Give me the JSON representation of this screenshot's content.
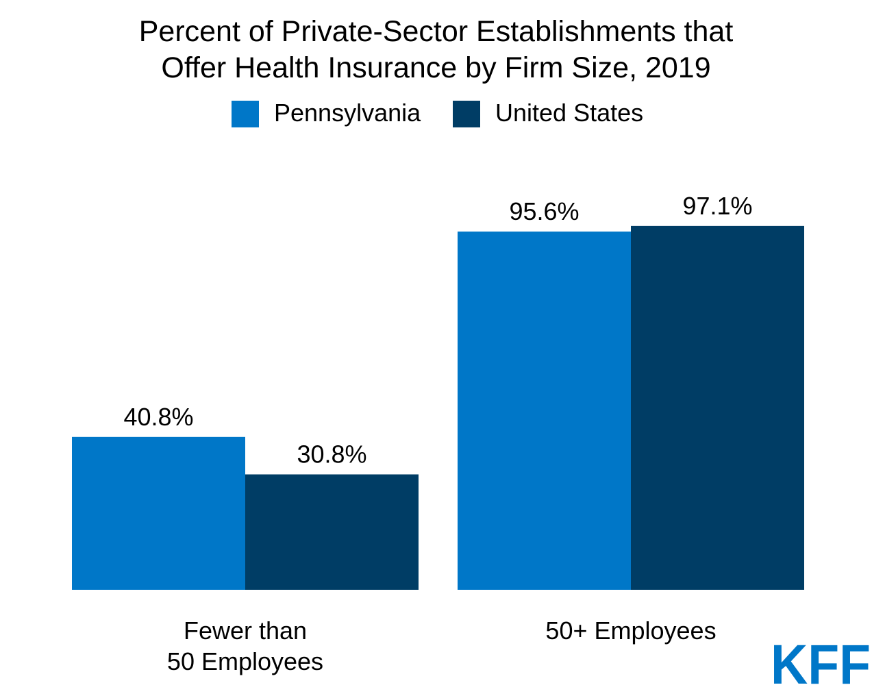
{
  "chart_data": {
    "type": "bar",
    "title_lines": [
      "Percent of Private-Sector Establishments that",
      "Offer Health Insurance by Firm Size, 2019"
    ],
    "categories": [
      [
        "Fewer than",
        "50 Employees"
      ],
      [
        "50+ Employees"
      ]
    ],
    "series": [
      {
        "name": "Pennsylvania",
        "color": "#0077c8",
        "values": [
          40.8,
          95.6
        ],
        "labels": [
          "40.8%",
          "95.6%"
        ]
      },
      {
        "name": "United States",
        "color": "#003d65",
        "values": [
          30.8,
          97.1
        ],
        "labels": [
          "30.8%",
          "97.1%"
        ]
      }
    ],
    "ylim": [
      0,
      100
    ],
    "grid": false,
    "legend_position": "top-center",
    "xlabel": "",
    "ylabel": ""
  },
  "branding": {
    "logo_text": "KFF",
    "logo_color": "#0077c8"
  }
}
